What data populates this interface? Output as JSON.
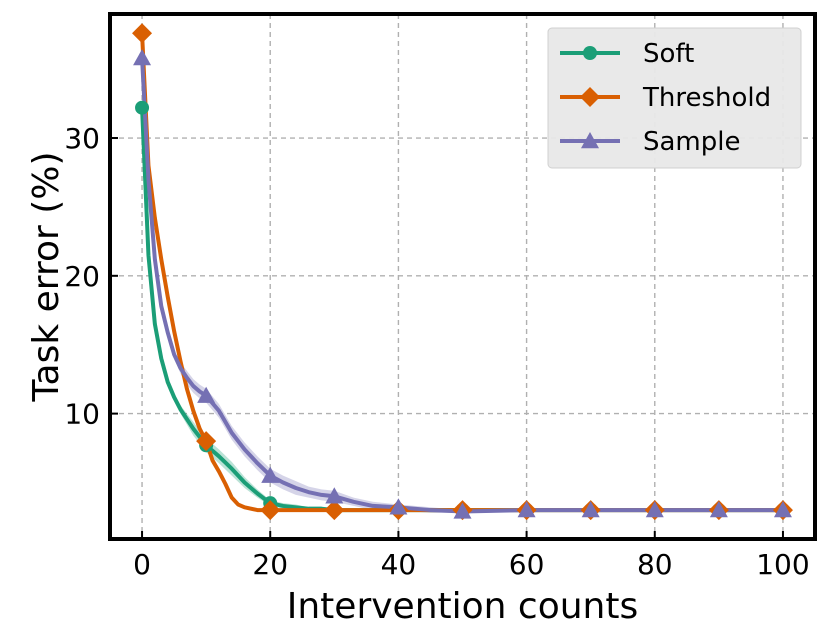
{
  "chart_data": {
    "type": "line",
    "title": "",
    "xlabel": "Intervention counts",
    "ylabel": "Task error (%)",
    "xlim": [
      -5,
      105
    ],
    "ylim": [
      0.9,
      39
    ],
    "xticks": [
      0,
      20,
      40,
      60,
      80,
      100
    ],
    "yticks": [
      10,
      20,
      30
    ],
    "grid": true,
    "legend_position": "top-right",
    "series": [
      {
        "name": "Soft",
        "color": "#1b9e77",
        "marker": "circle",
        "x": [
          0,
          1,
          2,
          3,
          4,
          5,
          6,
          7,
          8,
          9,
          10,
          12,
          14,
          16,
          18,
          20,
          22,
          24,
          26,
          28,
          30,
          35,
          40,
          45,
          50,
          60,
          70,
          80,
          90,
          100
        ],
        "values": [
          32.2,
          21.5,
          16.5,
          14.0,
          12.3,
          11.2,
          10.3,
          9.6,
          8.9,
          8.3,
          7.7,
          6.9,
          6.0,
          5.0,
          4.2,
          3.5,
          3.3,
          3.2,
          3.1,
          3.1,
          3.0,
          3.0,
          3.0,
          3.0,
          3.0,
          3.0,
          3.0,
          3.0,
          3.0,
          3.0
        ],
        "band": [
          0,
          0,
          0,
          0,
          0,
          0,
          0.3,
          0.4,
          0.5,
          0.5,
          0.5,
          0.5,
          0.5,
          0.4,
          0.3,
          0.2,
          0.2,
          0.2,
          0.1,
          0.1,
          0.1,
          0.1,
          0.1,
          0.1,
          0.1,
          0,
          0,
          0,
          0,
          0
        ],
        "marker_x": [
          0,
          10,
          20,
          30,
          40,
          50,
          60,
          70,
          80,
          90,
          100
        ]
      },
      {
        "name": "Threshold",
        "color": "#d95f02",
        "marker": "diamond",
        "x": [
          0,
          1,
          2,
          3,
          4,
          5,
          6,
          7,
          8,
          9,
          10,
          11,
          12,
          13,
          14,
          15,
          16,
          18,
          20,
          22,
          25,
          30,
          35,
          40,
          50,
          60,
          70,
          80,
          90,
          100
        ],
        "values": [
          37.6,
          28.0,
          24.2,
          21.2,
          18.5,
          16.0,
          13.8,
          11.8,
          10.2,
          8.9,
          8.0,
          6.6,
          5.8,
          4.9,
          3.9,
          3.4,
          3.2,
          3.0,
          3.0,
          3.0,
          3.0,
          3.0,
          3.0,
          3.0,
          3.0,
          3.0,
          3.0,
          3.0,
          3.0,
          3.0
        ],
        "band": [],
        "marker_x": [
          0,
          10,
          20,
          30,
          40,
          50,
          60,
          70,
          80,
          90,
          100
        ]
      },
      {
        "name": "Sample",
        "color": "#7570b3",
        "marker": "triangle",
        "x": [
          0,
          1,
          2,
          3,
          4,
          5,
          6,
          7,
          8,
          9,
          10,
          12,
          14,
          16,
          18,
          20,
          22,
          24,
          26,
          28,
          30,
          33,
          36,
          40,
          45,
          50,
          60,
          70,
          80,
          90,
          100
        ],
        "values": [
          35.8,
          27.0,
          21.2,
          17.8,
          15.9,
          14.3,
          13.3,
          12.6,
          12.0,
          11.6,
          11.3,
          10.2,
          8.6,
          7.4,
          6.4,
          5.5,
          5.0,
          4.6,
          4.3,
          4.1,
          4.0,
          3.6,
          3.3,
          3.2,
          3.0,
          2.9,
          3.0,
          3.0,
          3.0,
          3.0,
          3.0
        ],
        "band": [
          0,
          0,
          0,
          0,
          0,
          0.3,
          0.4,
          0.5,
          0.5,
          0.5,
          0.5,
          0.5,
          0.5,
          0.5,
          0.5,
          0.5,
          0.5,
          0.5,
          0.4,
          0.4,
          0.4,
          0.3,
          0.3,
          0.2,
          0.2,
          0.1,
          0.1,
          0,
          0,
          0,
          0
        ],
        "marker_x": [
          0,
          10,
          20,
          30,
          40,
          50,
          60,
          70,
          80,
          90,
          100
        ]
      }
    ]
  }
}
